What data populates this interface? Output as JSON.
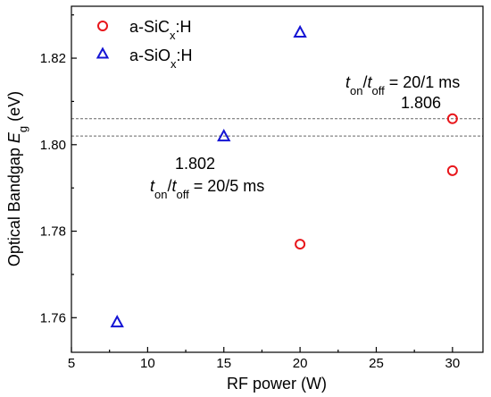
{
  "chart_data": {
    "type": "scatter",
    "xlabel": "RF power (W)",
    "ylabel": {
      "prefix": "Optical Bandgap ",
      "symbol": "E",
      "sub": "g",
      "unit": " (eV)"
    },
    "xlim": [
      5,
      32
    ],
    "ylim": [
      1.752,
      1.832
    ],
    "xticks": [
      5,
      10,
      15,
      20,
      25,
      30
    ],
    "yticks": [
      1.76,
      1.78,
      1.8,
      1.82
    ],
    "ytick_labels": [
      "1.76",
      "1.78",
      "1.80",
      "1.82"
    ],
    "grid": false,
    "legend_position": "top-left",
    "series": [
      {
        "name": {
          "base": "a-SiC",
          "sub": "x",
          "tail": ":H"
        },
        "marker": "circle",
        "color": "#e8161b",
        "points": [
          {
            "x": 20,
            "y": 1.777
          },
          {
            "x": 30,
            "y": 1.794
          },
          {
            "x": 30,
            "y": 1.806
          }
        ]
      },
      {
        "name": {
          "base": "a-SiO",
          "sub": "x",
          "tail": ":H"
        },
        "marker": "triangle",
        "color": "#1414d4",
        "points": [
          {
            "x": 8,
            "y": 1.759
          },
          {
            "x": 15,
            "y": 1.802
          },
          {
            "x": 20,
            "y": 1.826
          }
        ]
      }
    ],
    "reference_lines": [
      {
        "y": 1.806
      },
      {
        "y": 1.802
      }
    ],
    "annotations": [
      {
        "id": "a1806",
        "value": "1.806",
        "t": "t",
        "on": "on",
        "slash": "/",
        "off": "off",
        "tail": " = 20/1 ms",
        "at": {
          "x": 30,
          "y": 1.806
        }
      },
      {
        "id": "a1802",
        "value": "1.802",
        "t": "t",
        "on": "on",
        "slash": "/",
        "off": "off",
        "tail": " = 20/5 ms",
        "at": {
          "x": 15,
          "y": 1.802
        }
      }
    ]
  }
}
